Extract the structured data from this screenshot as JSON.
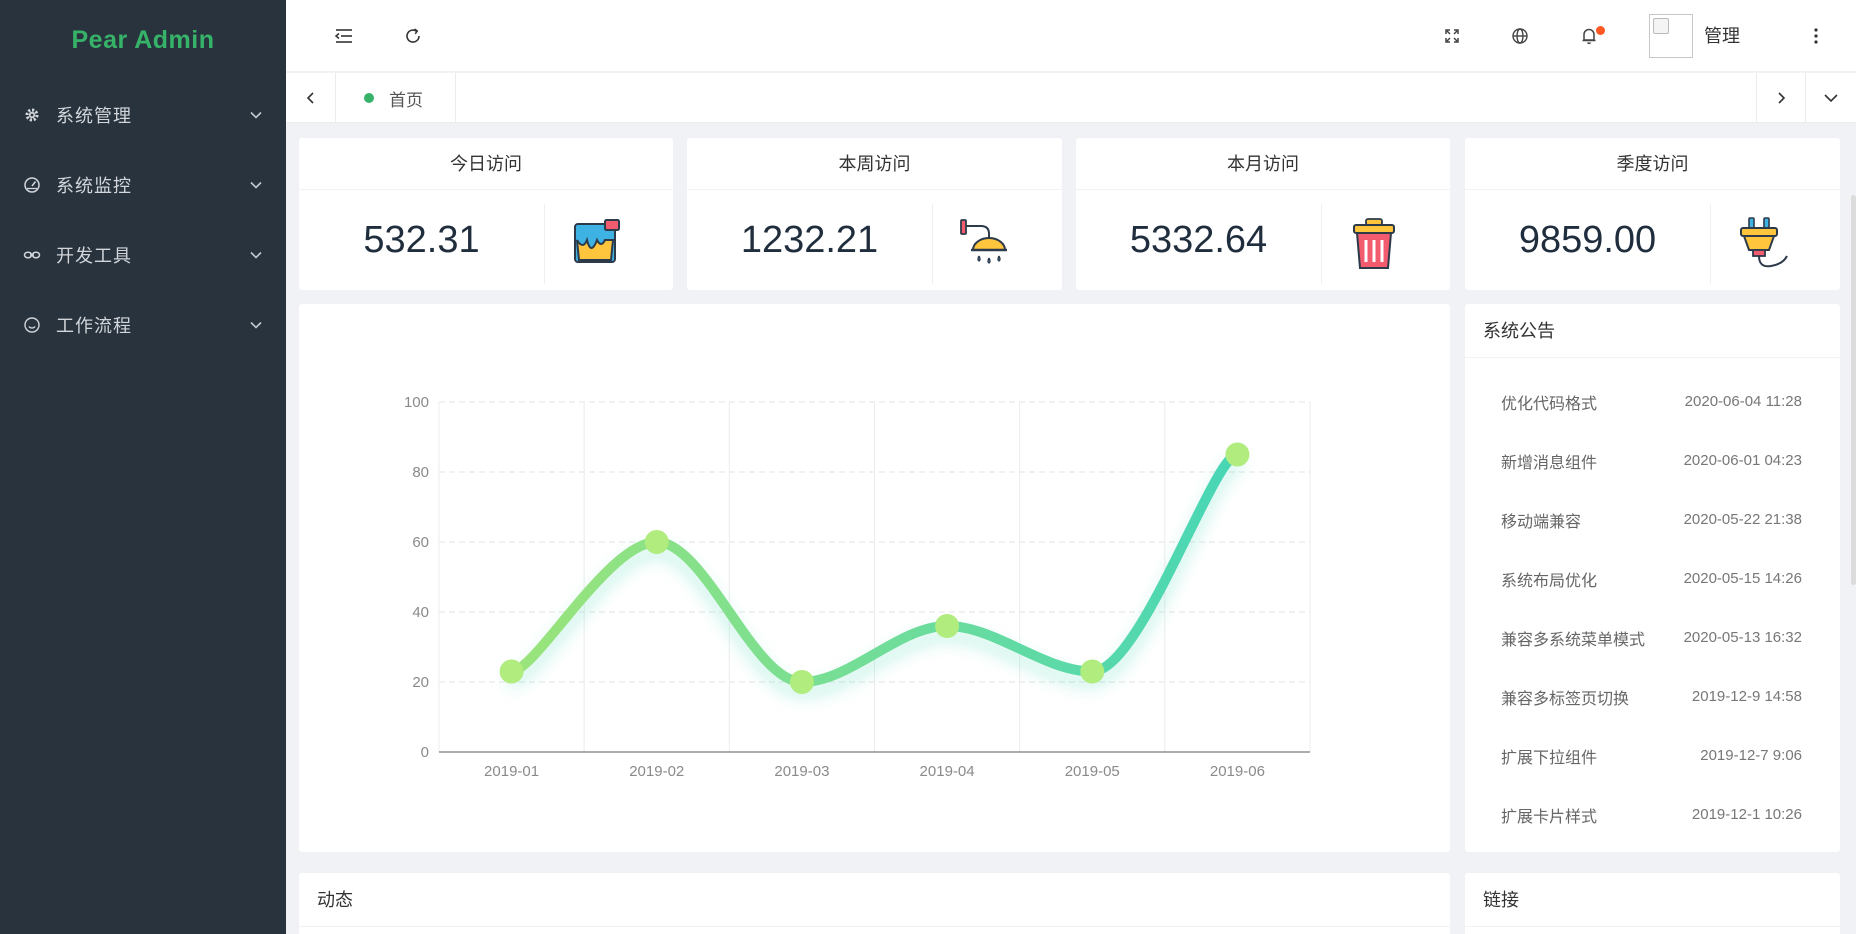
{
  "app": {
    "logo": "Pear Admin"
  },
  "sidebar": {
    "items": [
      {
        "label": "系统管理",
        "icon": "gear-icon"
      },
      {
        "label": "系统监控",
        "icon": "dashboard-icon"
      },
      {
        "label": "开发工具",
        "icon": "link-icon"
      },
      {
        "label": "工作流程",
        "icon": "smile-icon"
      }
    ]
  },
  "header": {
    "user": "管理"
  },
  "tabs": {
    "home": "首页"
  },
  "stats": [
    {
      "title": "今日访问",
      "value": "532.31",
      "icon": "paint-bucket-icon"
    },
    {
      "title": "本周访问",
      "value": "1232.21",
      "icon": "shower-icon"
    },
    {
      "title": "本月访问",
      "value": "5332.64",
      "icon": "trash-bin-icon"
    },
    {
      "title": "季度访问",
      "value": "9859.00",
      "icon": "power-plug-icon"
    }
  ],
  "chart_data": {
    "type": "line",
    "categories": [
      "2019-01",
      "2019-02",
      "2019-03",
      "2019-04",
      "2019-05",
      "2019-06"
    ],
    "values": [
      23,
      60,
      20,
      36,
      23,
      85
    ],
    "ylim": [
      0,
      100
    ],
    "yticks": [
      0,
      20,
      40,
      60,
      80,
      100
    ],
    "smooth": true,
    "grid": true,
    "colors": {
      "start": "#9be47a",
      "end": "#48d6b6",
      "point": "#b0ec7e"
    }
  },
  "notice": {
    "title": "系统公告",
    "items": [
      {
        "text": "优化代码格式",
        "time": "2020-06-04 11:28"
      },
      {
        "text": "新增消息组件",
        "time": "2020-06-01 04:23"
      },
      {
        "text": "移动端兼容",
        "time": "2020-05-22 21:38"
      },
      {
        "text": "系统布局优化",
        "time": "2020-05-15 14:26"
      },
      {
        "text": "兼容多系统菜单模式",
        "time": "2020-05-13 16:32"
      },
      {
        "text": "兼容多标签页切换",
        "time": "2019-12-9 14:58"
      },
      {
        "text": "扩展下拉组件",
        "time": "2019-12-7 9:06"
      },
      {
        "text": "扩展卡片样式",
        "time": "2019-12-1 10:26"
      }
    ]
  },
  "dynamic": {
    "title": "动态"
  },
  "links": {
    "title": "链接"
  }
}
